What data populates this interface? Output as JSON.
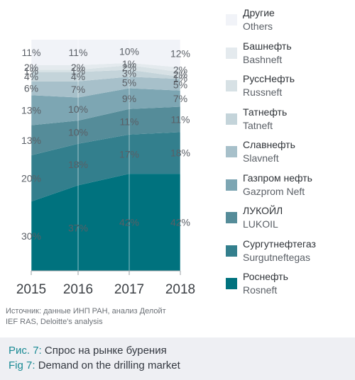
{
  "chart_data": {
    "type": "area",
    "stacked": true,
    "x": [
      "2015",
      "2016",
      "2017",
      "2018"
    ],
    "ylim": [
      0,
      100
    ],
    "grid": false,
    "legend_placement": "right",
    "series": [
      {
        "name": "Роснефть",
        "name_en": "Rosneft",
        "values": [
          30,
          37,
          42,
          42
        ],
        "labels": [
          "30%",
          "37%",
          "42%",
          "42%"
        ],
        "color": "#00727e"
      },
      {
        "name": "Сургутнефтегаз",
        "name_en": "Surgutneftegas",
        "values": [
          20,
          18,
          17,
          18
        ],
        "labels": [
          "20%",
          "18%",
          "17%",
          "18%"
        ],
        "color": "#337f8d"
      },
      {
        "name": "ЛУКОЙЛ",
        "name_en": "LUKOIL",
        "values": [
          13,
          10,
          11,
          11
        ],
        "labels": [
          "13%",
          "10%",
          "11%",
          "11%"
        ],
        "color": "#558c99"
      },
      {
        "name": "Газпром нефть",
        "name_en": "Gazprom Neft",
        "values": [
          13,
          10,
          9,
          7
        ],
        "labels": [
          "13%",
          "10%",
          "9%",
          "7%"
        ],
        "color": "#7da6b3"
      },
      {
        "name": "Славнефть",
        "name_en": "Slavneft",
        "values": [
          6,
          7,
          5,
          5
        ],
        "labels": [
          "6%",
          "7%",
          "5%",
          "5%"
        ],
        "color": "#a7c0ca"
      },
      {
        "name": "Татнефть",
        "name_en": "Tatneft",
        "values": [
          4,
          4,
          3,
          1
        ],
        "labels": [
          "4%",
          "4%",
          "3%",
          "1%"
        ],
        "color": "#c4d4da"
      },
      {
        "name": "РуссНефть",
        "name_en": "Russneft",
        "values": [
          1,
          1,
          2,
          2
        ],
        "labels": [
          "1%",
          "1%",
          "2%",
          "2%"
        ],
        "color": "#d7e1e5"
      },
      {
        "name": "Башнефть",
        "name_en": "Bashneft",
        "values": [
          2,
          2,
          1,
          2
        ],
        "labels": [
          "2%",
          "2%",
          "1%",
          "2%"
        ],
        "color": "#e4eaee"
      },
      {
        "name": "Другие",
        "name_en": "Others",
        "values": [
          11,
          11,
          10,
          12
        ],
        "labels": [
          "11%",
          "11%",
          "10%",
          "12%"
        ],
        "color": "#f1f3f8"
      }
    ]
  },
  "source": {
    "line_ru": "Источник: данные ИНП РАН, анализ Делойт",
    "line_en": "IEF RAS, Deloitte's analysis"
  },
  "caption": {
    "prefix_ru": "Рис. 7:",
    "text_ru": "Спрос на рынке бурения",
    "prefix_en": "Fig 7:",
    "text_en": "Demand on the drilling market"
  }
}
